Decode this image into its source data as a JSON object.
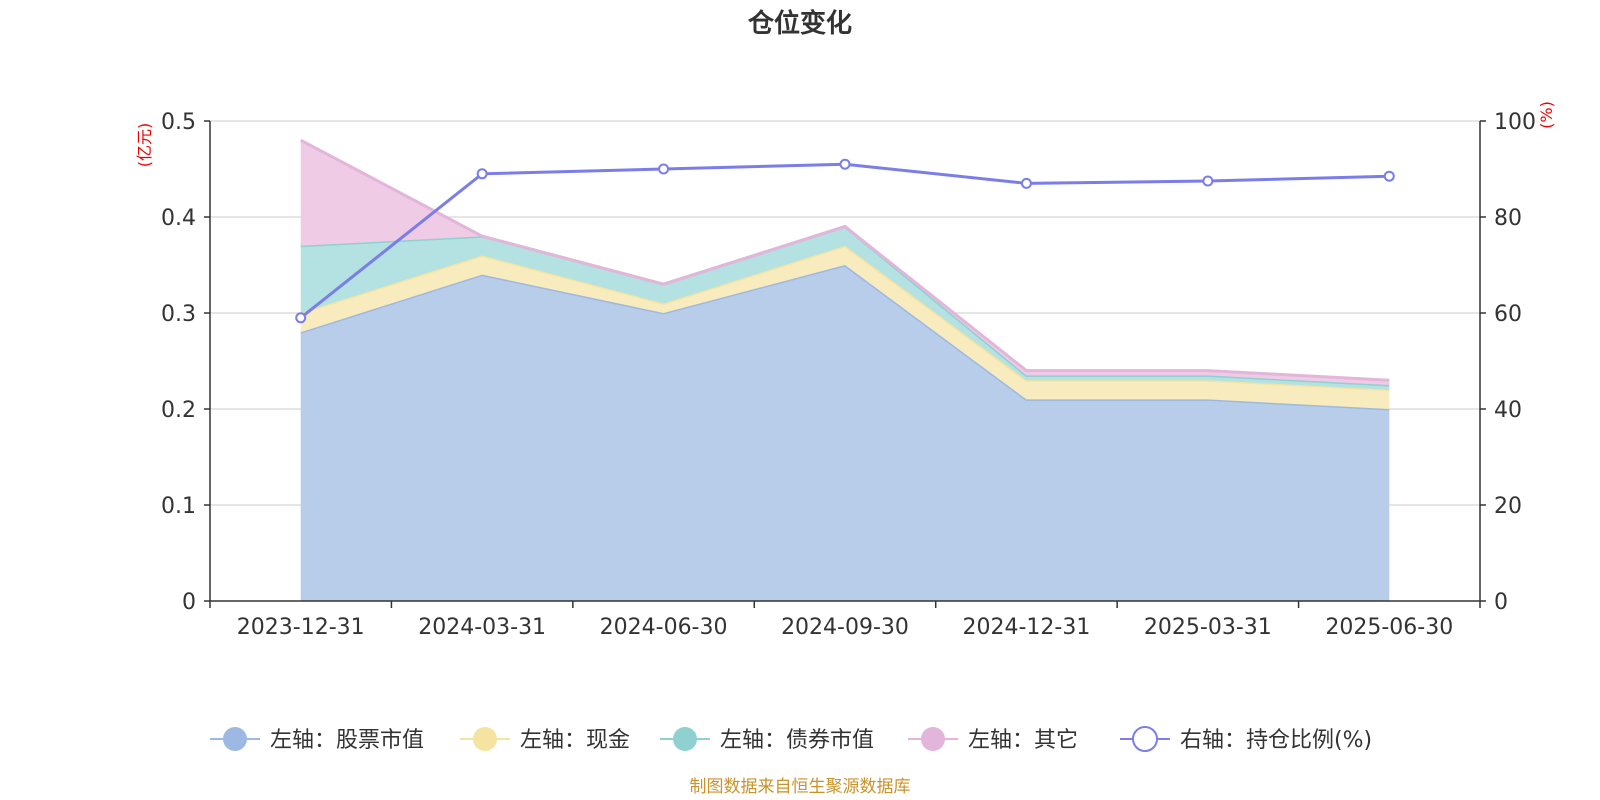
{
  "chart_data": {
    "type": "area",
    "title": "仓位变化",
    "categories": [
      "2023-12-31",
      "2024-03-31",
      "2024-06-30",
      "2024-09-30",
      "2024-12-31",
      "2025-03-31",
      "2025-06-30"
    ],
    "y_left": {
      "unit": "(亿元)",
      "ylim": [
        0,
        0.5
      ],
      "ticks": [
        "0",
        "0.1",
        "0.2",
        "0.3",
        "0.4",
        "0.5"
      ]
    },
    "y_right": {
      "unit": "(%)",
      "ylim": [
        0,
        100
      ],
      "ticks": [
        "0",
        "20",
        "40",
        "60",
        "80",
        "100"
      ]
    },
    "grid": true,
    "legend_position": "bottom",
    "stacked": true,
    "series": [
      {
        "name": "左轴：股票市值",
        "axis": "left",
        "color": "#9db8e2",
        "fill": "#b8cdea",
        "values": [
          0.28,
          0.34,
          0.3,
          0.35,
          0.21,
          0.21,
          0.2
        ]
      },
      {
        "name": "左轴：现金",
        "axis": "left",
        "color": "#f5e3a0",
        "fill": "#f8ebbd",
        "values": [
          0.02,
          0.02,
          0.01,
          0.02,
          0.02,
          0.02,
          0.02
        ]
      },
      {
        "name": "左轴：债券市值",
        "axis": "left",
        "color": "#8fd0d0",
        "fill": "#b4e1e1",
        "values": [
          0.07,
          0.02,
          0.02,
          0.02,
          0.005,
          0.005,
          0.005
        ]
      },
      {
        "name": "左轴：其它",
        "axis": "left",
        "color": "#e3b5da",
        "fill": "#efcbe6",
        "values": [
          0.11,
          0.0,
          0.0,
          0.0,
          0.005,
          0.005,
          0.005
        ]
      },
      {
        "name": "右轴：持仓比例(%)",
        "axis": "right",
        "type": "line",
        "color": "#7b7de8",
        "values": [
          59,
          89,
          90,
          91,
          87,
          87.5,
          88.5
        ]
      }
    ],
    "source": "制图数据来自恒生聚源数据库"
  }
}
